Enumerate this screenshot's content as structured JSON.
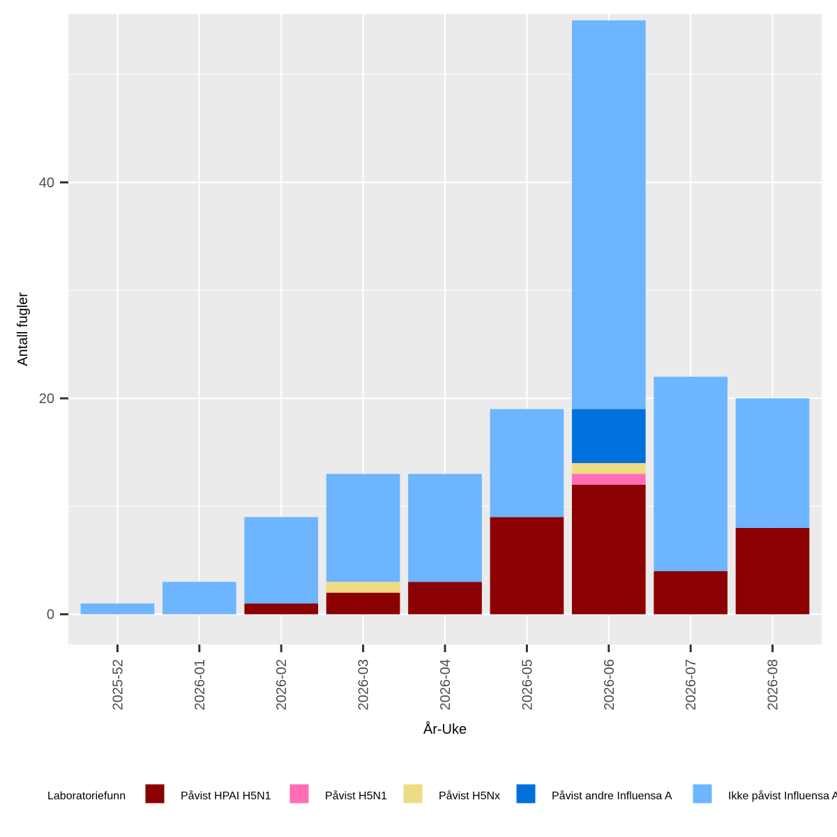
{
  "chart_data": {
    "type": "bar",
    "stacked": true,
    "title": "",
    "xlabel": "År-Uke",
    "ylabel": "Antall fugler",
    "ylim": [
      -2.8,
      55.6
    ],
    "yticks": [
      0,
      20,
      40
    ],
    "categories": [
      "2025-52",
      "2026-01",
      "2026-02",
      "2026-03",
      "2026-04",
      "2026-05",
      "2026-06",
      "2026-07",
      "2026-08"
    ],
    "series": [
      {
        "name": "Påvist HPAI H5N1",
        "color": "#8B0000",
        "values": [
          0,
          0,
          1,
          2,
          3,
          9,
          12,
          4,
          8
        ]
      },
      {
        "name": "Påvist H5N1",
        "color": "#FF6EB4",
        "values": [
          0,
          0,
          0,
          0,
          0,
          0,
          1,
          0,
          0
        ]
      },
      {
        "name": "Påvist H5Nx",
        "color": "#EEDC82",
        "values": [
          0,
          0,
          0,
          1,
          0,
          0,
          1,
          0,
          0
        ]
      },
      {
        "name": "Påvist andre Influensa A",
        "color": "#0070DD",
        "values": [
          0,
          0,
          0,
          0,
          0,
          0,
          5,
          0,
          0
        ]
      },
      {
        "name": "Ikke påvist Influensa A",
        "color": "#6DB5FF",
        "values": [
          1,
          3,
          8,
          10,
          10,
          10,
          36,
          18,
          12
        ]
      }
    ],
    "legend": {
      "title": "Laboratoriefunn",
      "position": "bottom"
    },
    "grid": true
  }
}
